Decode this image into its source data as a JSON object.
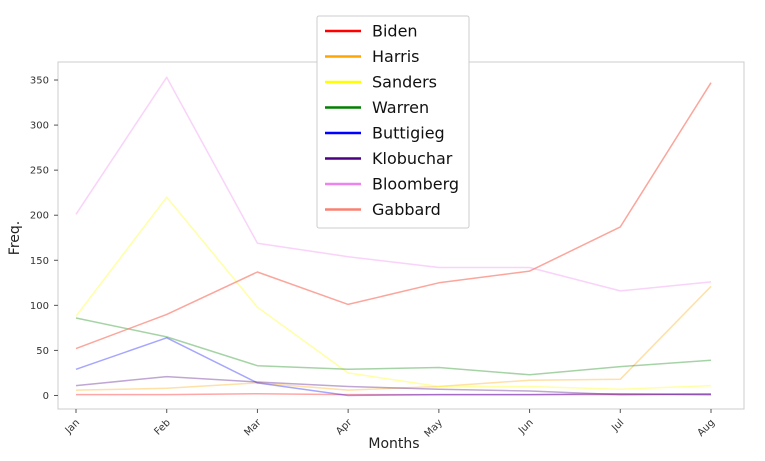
{
  "chart_data": {
    "type": "line",
    "xlabel": "Months",
    "ylabel": "Freq.",
    "categories": [
      "Jan",
      "Feb",
      "Mar",
      "Apr",
      "May",
      "Jun",
      "Jul",
      "Aug"
    ],
    "ylim": [
      -15,
      370
    ],
    "yticks": [
      0,
      50,
      100,
      150,
      200,
      250,
      300,
      350
    ],
    "grid": false,
    "legend_position": "top-center",
    "series": [
      {
        "name": "Biden",
        "color": "#ff0000",
        "line_alpha": 0.35,
        "values": [
          1,
          1,
          2,
          1,
          1,
          1,
          1,
          1
        ]
      },
      {
        "name": "Harris",
        "color": "#ffa500",
        "line_alpha": 0.35,
        "values": [
          6,
          8,
          14,
          6,
          10,
          17,
          18,
          121
        ]
      },
      {
        "name": "Sanders",
        "color": "#ffff00",
        "line_alpha": 0.35,
        "values": [
          88,
          220,
          98,
          25,
          10,
          10,
          7,
          11
        ]
      },
      {
        "name": "Warren",
        "color": "#008000",
        "line_alpha": 0.35,
        "values": [
          86,
          65,
          33,
          29,
          31,
          23,
          32,
          39
        ]
      },
      {
        "name": "Buttigieg",
        "color": "#0000ff",
        "line_alpha": 0.35,
        "values": [
          29,
          64,
          14,
          0,
          1,
          1,
          2,
          1
        ]
      },
      {
        "name": "Klobuchar",
        "color": "#4b0082",
        "line_alpha": 0.35,
        "values": [
          11,
          21,
          15,
          10,
          7,
          5,
          1,
          2
        ]
      },
      {
        "name": "Bloomberg",
        "color": "#ee82ee",
        "line_alpha": 0.35,
        "values": [
          201,
          353,
          169,
          154,
          142,
          142,
          116,
          126
        ]
      },
      {
        "name": "Gabbard",
        "color": "#fa8072",
        "line_alpha": 0.7,
        "values": [
          52,
          90,
          137,
          101,
          125,
          138,
          187,
          347
        ]
      }
    ]
  }
}
